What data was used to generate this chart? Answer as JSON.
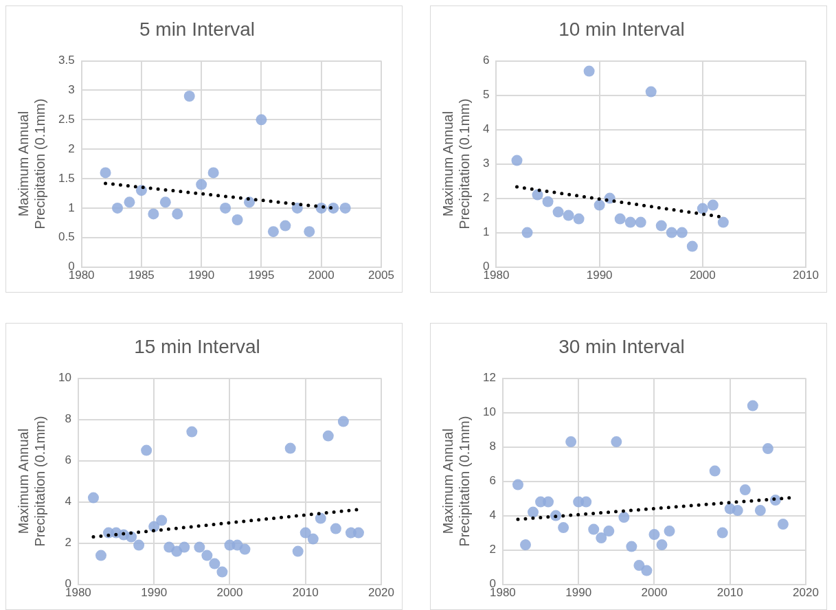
{
  "chart_data": [
    {
      "type": "scatter",
      "title": "5 min Interval",
      "ylabel": "Maximum Annual Precipitation (0.1mm)",
      "xlim": [
        1980,
        2005
      ],
      "xticks": [
        1980,
        1985,
        1990,
        1995,
        2000,
        2005
      ],
      "ylim": [
        0,
        3.5
      ],
      "yticks": [
        0,
        0.5,
        1,
        1.5,
        2,
        2.5,
        3,
        3.5
      ],
      "grid": true,
      "series": [
        {
          "type": "scatter",
          "color": "#8faadc",
          "marker": "circle",
          "x": [
            1982,
            1983,
            1984,
            1985,
            1986,
            1987,
            1988,
            1989,
            1990,
            1991,
            1992,
            1993,
            1994,
            1995,
            1996,
            1997,
            1998,
            1999,
            2000,
            2001,
            2002
          ],
          "values": [
            1.6,
            1.0,
            1.1,
            1.3,
            0.9,
            1.1,
            0.9,
            2.9,
            1.4,
            1.6,
            1.0,
            0.8,
            1.1,
            2.5,
            0.6,
            0.7,
            1.0,
            0.6,
            1.0,
            1.0,
            1.0
          ]
        },
        {
          "type": "line",
          "color": "#000000",
          "marker": "none",
          "line_style": "dotted",
          "x": [
            1982,
            2001
          ],
          "values": [
            1.42,
            1.0
          ]
        }
      ]
    },
    {
      "type": "scatter",
      "title": "10 min Interval",
      "ylabel": "Maximum Annual Precipitation (0.1mm)",
      "xlim": [
        1980,
        2010
      ],
      "xticks": [
        1980,
        1990,
        2000,
        2010
      ],
      "ylim": [
        0,
        6
      ],
      "yticks": [
        0,
        1,
        2,
        3,
        4,
        5,
        6
      ],
      "grid": true,
      "series": [
        {
          "type": "scatter",
          "color": "#8faadc",
          "marker": "circle",
          "x": [
            1982,
            1983,
            1984,
            1985,
            1986,
            1987,
            1988,
            1989,
            1990,
            1991,
            1992,
            1993,
            1994,
            1995,
            1996,
            1997,
            1998,
            1999,
            2000,
            2001,
            2002
          ],
          "values": [
            3.1,
            1.0,
            2.1,
            1.9,
            1.6,
            1.5,
            1.4,
            5.7,
            1.8,
            2.0,
            1.4,
            1.3,
            1.3,
            5.1,
            1.2,
            1.0,
            1.0,
            0.6,
            1.7,
            1.8,
            1.3
          ]
        },
        {
          "type": "line",
          "color": "#000000",
          "marker": "none",
          "line_style": "dotted",
          "x": [
            1982,
            2002
          ],
          "values": [
            2.33,
            1.45
          ]
        }
      ]
    },
    {
      "type": "scatter",
      "title": "15 min Interval",
      "ylabel": "Maximum Annual Precipitation (0.1mm)",
      "xlim": [
        1980,
        2020
      ],
      "xticks": [
        1980,
        1990,
        2000,
        2010,
        2020
      ],
      "ylim": [
        0,
        10
      ],
      "yticks": [
        0,
        2,
        4,
        6,
        8,
        10
      ],
      "grid": true,
      "series": [
        {
          "type": "scatter",
          "color": "#8faadc",
          "marker": "circle",
          "x": [
            1982,
            1983,
            1984,
            1985,
            1986,
            1987,
            1988,
            1989,
            1990,
            1991,
            1992,
            1993,
            1994,
            1995,
            1996,
            1997,
            1998,
            1999,
            2000,
            2001,
            2002,
            2008,
            2009,
            2010,
            2011,
            2012,
            2013,
            2014,
            2015,
            2016,
            2017
          ],
          "values": [
            4.2,
            1.4,
            2.5,
            2.5,
            2.4,
            2.3,
            1.9,
            6.5,
            2.8,
            3.1,
            1.8,
            1.6,
            1.8,
            7.4,
            1.8,
            1.4,
            1.0,
            0.6,
            1.9,
            1.9,
            1.7,
            6.6,
            1.6,
            2.5,
            2.2,
            3.2,
            7.2,
            2.7,
            7.9,
            2.5,
            2.5
          ]
        },
        {
          "type": "line",
          "color": "#000000",
          "marker": "none",
          "line_style": "dotted",
          "x": [
            1982,
            2017
          ],
          "values": [
            2.3,
            3.63
          ]
        }
      ]
    },
    {
      "type": "scatter",
      "title": "30 min Interval",
      "ylabel": "Maximum Annual Precipitation (0.1mm)",
      "xlim": [
        1980,
        2020
      ],
      "xticks": [
        1980,
        1990,
        2000,
        2010,
        2020
      ],
      "ylim": [
        0,
        12
      ],
      "yticks": [
        0,
        2,
        4,
        6,
        8,
        10,
        12
      ],
      "grid": true,
      "series": [
        {
          "type": "scatter",
          "color": "#8faadc",
          "marker": "circle",
          "x": [
            1982,
            1983,
            1984,
            1985,
            1986,
            1987,
            1988,
            1989,
            1990,
            1991,
            1992,
            1993,
            1994,
            1995,
            1996,
            1997,
            1998,
            1999,
            2000,
            2001,
            2002,
            2008,
            2009,
            2010,
            2011,
            2012,
            2013,
            2014,
            2015,
            2016,
            2017
          ],
          "values": [
            5.8,
            2.3,
            4.2,
            4.8,
            4.8,
            4.0,
            3.3,
            8.3,
            4.8,
            4.8,
            3.2,
            2.7,
            3.1,
            8.3,
            3.9,
            2.2,
            1.1,
            0.8,
            2.9,
            2.3,
            3.1,
            6.6,
            3.0,
            4.4,
            4.3,
            5.5,
            10.4,
            4.3,
            7.9,
            4.9,
            3.5
          ]
        },
        {
          "type": "line",
          "color": "#000000",
          "marker": "none",
          "line_style": "dotted",
          "x": [
            1982,
            2018
          ],
          "values": [
            3.78,
            5.04
          ]
        }
      ]
    }
  ]
}
